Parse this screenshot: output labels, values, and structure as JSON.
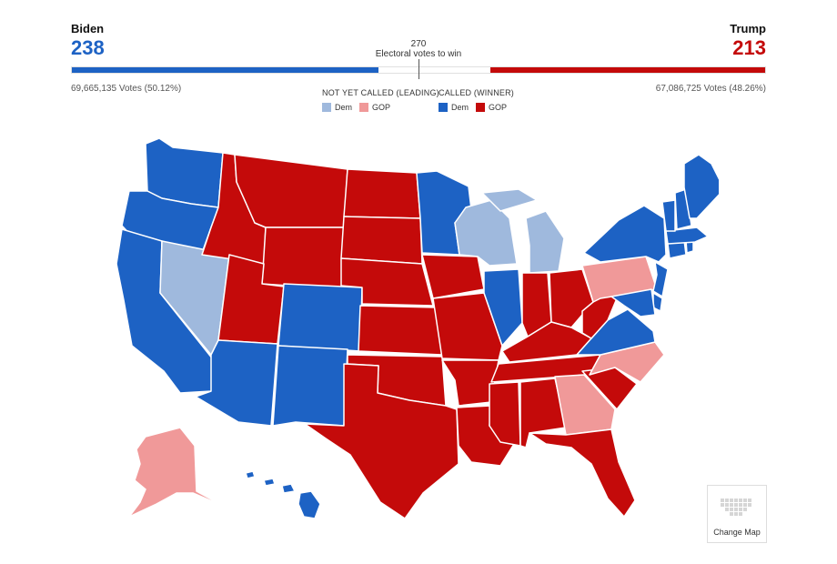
{
  "biden": {
    "name": "Biden",
    "electoral_votes": "238",
    "popular": "69,665,135 Votes (50.12%)"
  },
  "trump": {
    "name": "Trump",
    "electoral_votes": "213",
    "popular": "67,086,725 Votes (48.26%)"
  },
  "threshold": {
    "value": "270",
    "label": "Electoral votes to win"
  },
  "bar": {
    "total": 538,
    "dem": 238,
    "gop": 213
  },
  "colors": {
    "dem_called": "#1d62c4",
    "gop_called": "#c40a0a",
    "dem_leading": "#9fb9dd",
    "gop_leading": "#f09999"
  },
  "legend": {
    "not_called": {
      "header": "NOT YET CALLED (LEADING)",
      "dem": "Dem",
      "gop": "GOP"
    },
    "called": {
      "header": "CALLED (WINNER)",
      "dem": "Dem",
      "gop": "GOP"
    }
  },
  "states": {
    "WA": "dem_called",
    "OR": "dem_called",
    "CA": "dem_called",
    "NV": "dem_leading",
    "ID": "gop_called",
    "MT": "gop_called",
    "WY": "gop_called",
    "UT": "gop_called",
    "AZ": "dem_called",
    "CO": "dem_called",
    "NM": "dem_called",
    "ND": "gop_called",
    "SD": "gop_called",
    "NE": "gop_called",
    "KS": "gop_called",
    "OK": "gop_called",
    "TX": "gop_called",
    "MN": "dem_called",
    "IA": "gop_called",
    "MO": "gop_called",
    "AR": "gop_called",
    "LA": "gop_called",
    "WI": "dem_leading",
    "IL": "dem_called",
    "MI": "dem_leading",
    "IN": "gop_called",
    "OH": "gop_called",
    "KY": "gop_called",
    "TN": "gop_called",
    "MS": "gop_called",
    "AL": "gop_called",
    "GA": "gop_leading",
    "FL": "gop_called",
    "SC": "gop_called",
    "NC": "gop_leading",
    "VA": "dem_called",
    "WV": "gop_called",
    "PA": "gop_leading",
    "NY": "dem_called",
    "NJ": "dem_called",
    "DE": "dem_called",
    "MD": "dem_called",
    "CT": "dem_called",
    "RI": "dem_called",
    "MA": "dem_called",
    "VT": "dem_called",
    "NH": "dem_called",
    "ME": "dem_called",
    "AK": "gop_leading",
    "HI": "dem_called"
  },
  "change_map": {
    "label": "Change Map"
  }
}
